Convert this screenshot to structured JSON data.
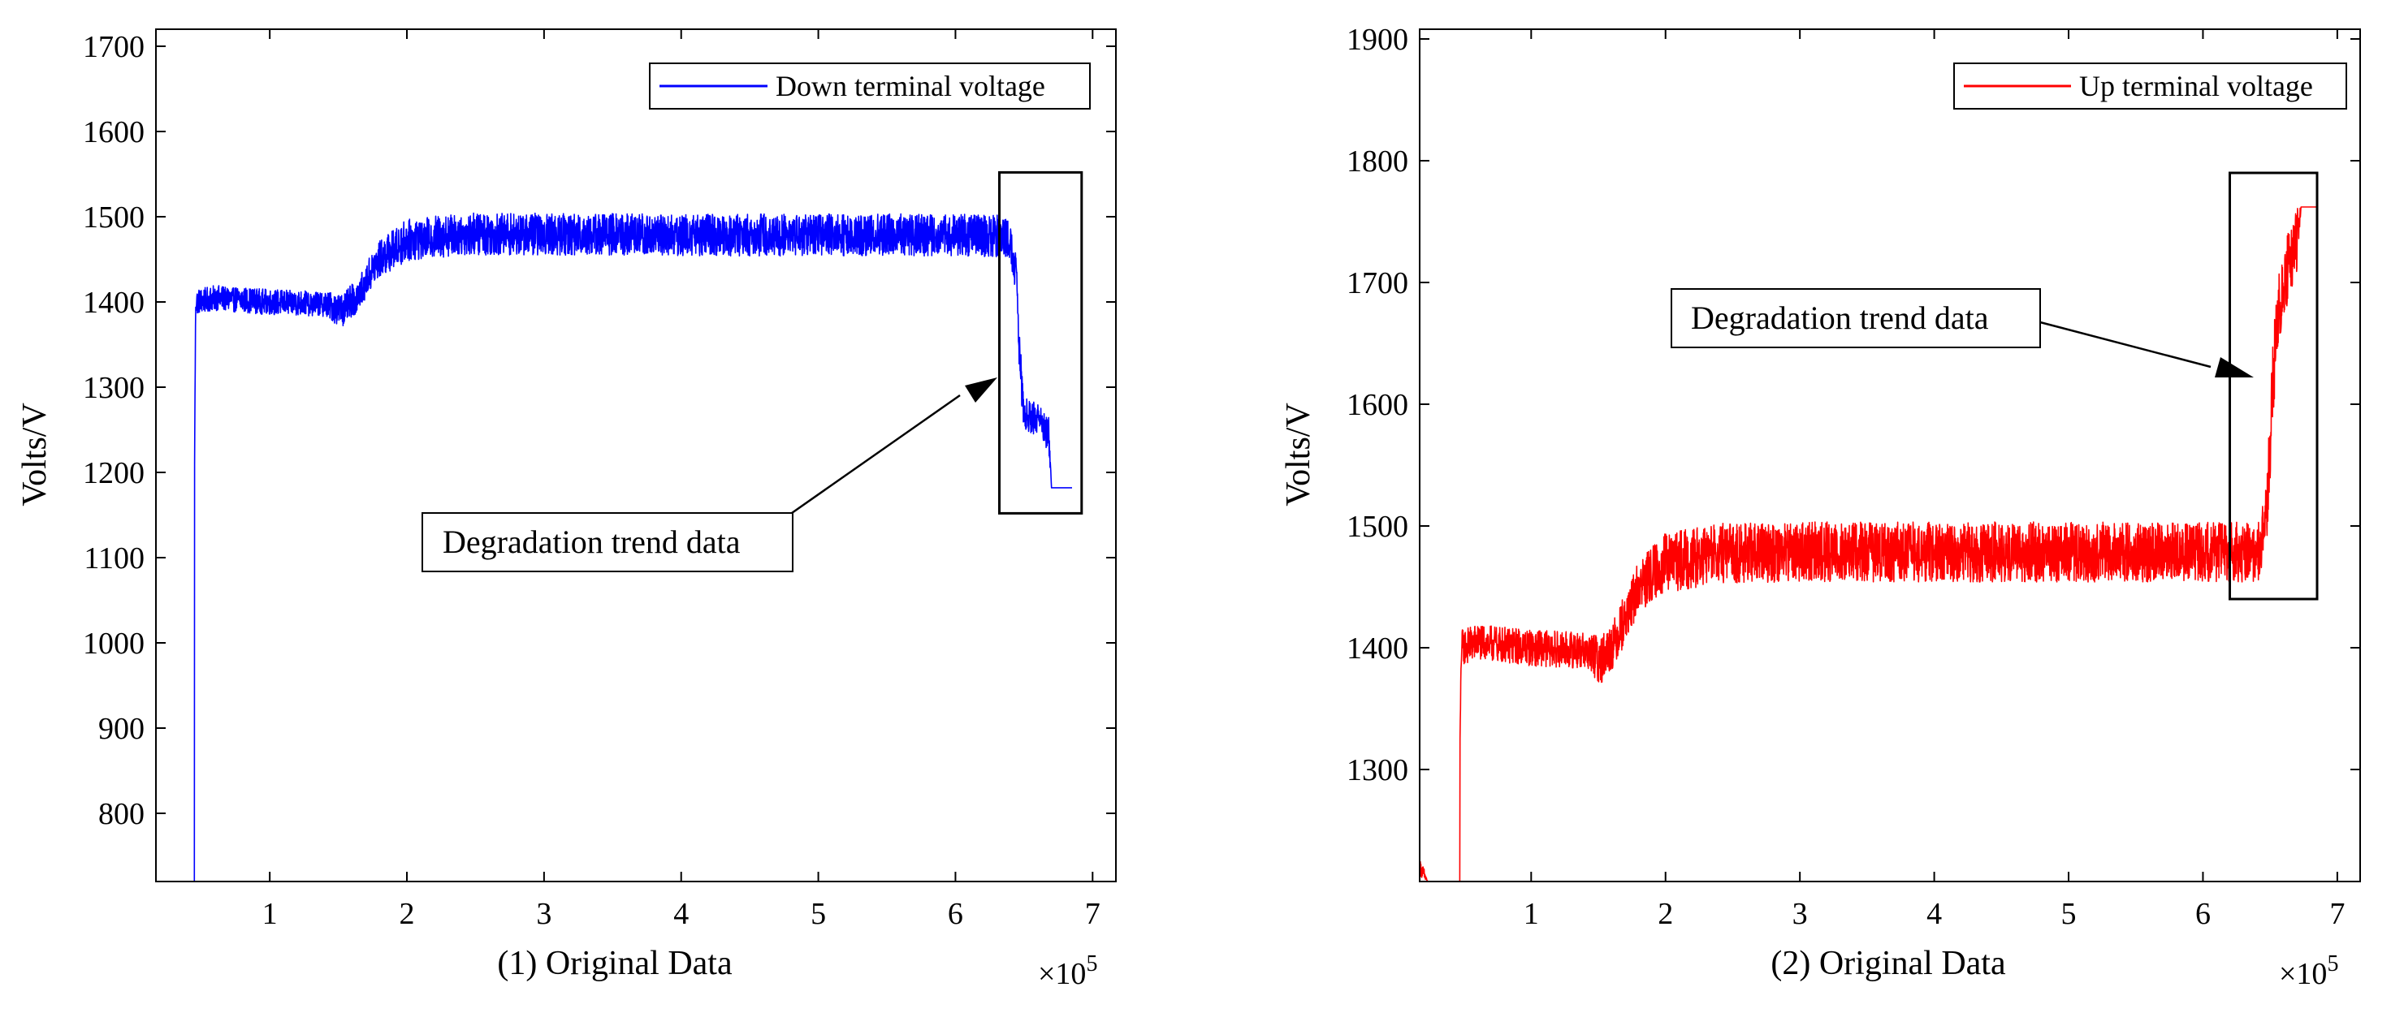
{
  "chart_data": [
    {
      "type": "line",
      "xlabel": "(1) Original Data",
      "ylabel": "Volts/V",
      "x_exponent_label": "×10",
      "x_exponent_power": "5",
      "xlim": [
        0.17,
        7.17
      ],
      "ylim": [
        720,
        1720
      ],
      "xticks": [
        1,
        2,
        3,
        4,
        5,
        6,
        7
      ],
      "xtick_labels": [
        "1",
        "2",
        "3",
        "4",
        "5",
        "6",
        "7"
      ],
      "yticks": [
        800,
        900,
        1000,
        1100,
        1200,
        1300,
        1400,
        1500,
        1600,
        1700
      ],
      "ytick_labels": [
        "800",
        "900",
        "1000",
        "1100",
        "1200",
        "1300",
        "1400",
        "1500",
        "1600",
        "1700"
      ],
      "color": "#0000ff",
      "legend": {
        "label": "Down terminal voltage",
        "position": "top-right"
      },
      "annotation": {
        "text": "Degradation trend data"
      },
      "highlight_box": {
        "x": [
          6.32,
          6.92
        ],
        "y": [
          1152,
          1552
        ]
      },
      "series": [
        {
          "name": "Down terminal voltage",
          "x": [
            0.45,
            0.45,
            0.46,
            0.6,
            1.0,
            1.4,
            1.52,
            1.62,
            1.8,
            2.0,
            2.4,
            3.0,
            4.0,
            5.0,
            6.0,
            6.3,
            6.38,
            6.44,
            6.47,
            6.5,
            6.6,
            6.68,
            6.7,
            6.85
          ],
          "y": [
            720,
            1170,
            1400,
            1405,
            1400,
            1398,
            1390,
            1405,
            1450,
            1473,
            1480,
            1480,
            1479,
            1479,
            1479,
            1478,
            1475,
            1440,
            1330,
            1270,
            1262,
            1245,
            1182,
            1182
          ],
          "noise": [
            0,
            0,
            15,
            15,
            15,
            15,
            20,
            20,
            22,
            25,
            25,
            25,
            25,
            25,
            25,
            25,
            25,
            25,
            30,
            20,
            20,
            20,
            0,
            0
          ]
        }
      ]
    },
    {
      "type": "line",
      "xlabel": "(2) Original Data",
      "ylabel": "Volts/V",
      "x_exponent_label": "×10",
      "x_exponent_power": "5",
      "xlim": [
        0.17,
        7.17
      ],
      "ylim": [
        1208,
        1908
      ],
      "xticks": [
        1,
        2,
        3,
        4,
        5,
        6,
        7
      ],
      "xtick_labels": [
        "1",
        "2",
        "3",
        "4",
        "5",
        "6",
        "7"
      ],
      "yticks": [
        1300,
        1400,
        1500,
        1600,
        1700,
        1800,
        1900
      ],
      "ytick_labels": [
        "1300",
        "1400",
        "1500",
        "1600",
        "1700",
        "1800",
        "1900"
      ],
      "color": "#ff0000",
      "legend": {
        "label": "Up terminal voltage",
        "position": "top-right"
      },
      "annotation": {
        "text": "Degradation trend data"
      },
      "highlight_box": {
        "x": [
          6.2,
          6.85
        ],
        "y": [
          1440,
          1790
        ]
      },
      "series": [
        {
          "name": "Up terminal voltage",
          "x": [
            0.17,
            0.2,
            0.23,
            0.47,
            0.47,
            0.48,
            0.6,
            1.0,
            1.4,
            1.52,
            1.62,
            1.8,
            2.0,
            2.4,
            3.0,
            4.0,
            5.0,
            6.0,
            6.35,
            6.42,
            6.48,
            6.52,
            6.56,
            6.65,
            6.7,
            6.73,
            6.85
          ],
          "y": [
            1220,
            1214,
            1208,
            1208,
            1320,
            1400,
            1405,
            1400,
            1398,
            1390,
            1405,
            1450,
            1470,
            1478,
            1479,
            1479,
            1479,
            1479,
            1479,
            1479,
            1520,
            1620,
            1680,
            1720,
            1735,
            1762,
            1762
          ],
          "noise": [
            6,
            6,
            0,
            0,
            0,
            15,
            15,
            15,
            15,
            20,
            20,
            22,
            25,
            25,
            25,
            25,
            25,
            25,
            25,
            25,
            30,
            35,
            30,
            30,
            30,
            0,
            0
          ]
        }
      ]
    }
  ]
}
